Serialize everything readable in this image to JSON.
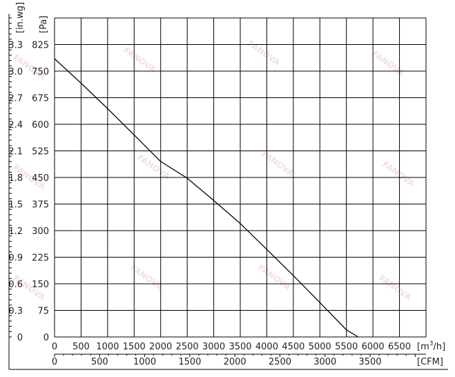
{
  "chart_data": {
    "type": "line",
    "title": "",
    "watermark": "FANOVA",
    "x_primary": {
      "unit": "[m",
      "unit_sup": "3",
      "unit_tail": "/h]",
      "range": [
        0,
        7000
      ],
      "ticks": [
        "0",
        "500",
        "1000",
        "1500",
        "2000",
        "2500",
        "3000",
        "3500",
        "4000",
        "4500",
        "5000",
        "5500",
        "6000",
        "6500"
      ]
    },
    "x_secondary": {
      "unit": "[CFM]",
      "range": [
        0,
        4120
      ],
      "ticks": [
        {
          "value": 0,
          "label": "0"
        },
        {
          "value": 500,
          "label": "500"
        },
        {
          "value": 1000,
          "label": "1000"
        },
        {
          "value": 1500,
          "label": "1500"
        },
        {
          "value": 2000,
          "label": "2000"
        },
        {
          "value": 2500,
          "label": "2500"
        },
        {
          "value": 3000,
          "label": "3000"
        },
        {
          "value": 3500,
          "label": "3500"
        }
      ]
    },
    "y_primary": {
      "unit": "[Pa]",
      "range": [
        0,
        900
      ],
      "ticks": [
        "0",
        "75",
        "150",
        "225",
        "300",
        "375",
        "450",
        "525",
        "600",
        "675",
        "750",
        "825"
      ]
    },
    "y_secondary": {
      "unit": "[in.wg]",
      "ticks": [
        "0",
        "0.3",
        "0.6",
        "0.9",
        "1.2",
        "1.5",
        "1.8",
        "2.1",
        "2.4",
        "2.7",
        "3.0",
        "3.3"
      ]
    },
    "grid": true,
    "series": [
      {
        "x": [
          0,
          500,
          1000,
          1500,
          2000,
          2500,
          3000,
          3500,
          4000,
          4500,
          5000,
          5500,
          5720
        ],
        "y": [
          785,
          716,
          644,
          570,
          495,
          448,
          385,
          320,
          247,
          173,
          97,
          20,
          0
        ]
      }
    ]
  }
}
